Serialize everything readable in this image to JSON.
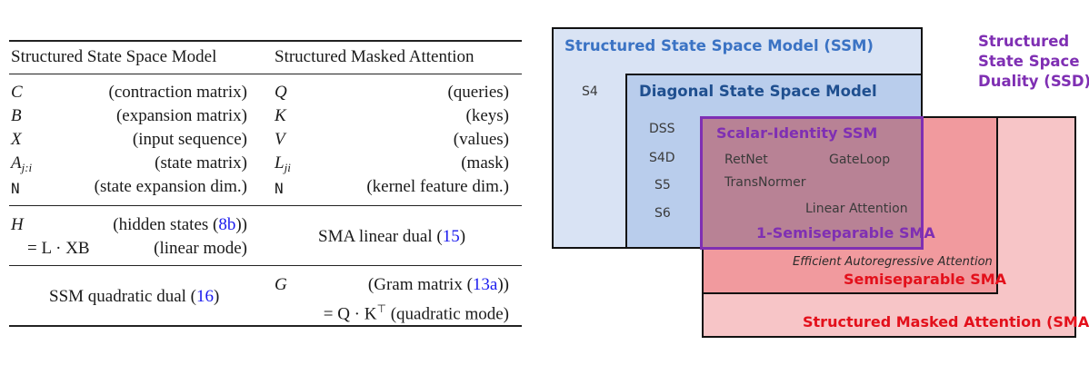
{
  "table": {
    "header_left": "Structured State Space Model",
    "header_right": "Structured Masked Attention",
    "rows": [
      {
        "lsym": "C",
        "ldesc": "(contraction matrix)",
        "rsym": "Q",
        "rdesc": "(queries)"
      },
      {
        "lsym": "B",
        "ldesc": "(expansion matrix)",
        "rsym": "K",
        "rdesc": "(keys)"
      },
      {
        "lsym": "X",
        "ldesc": "(input sequence)",
        "rsym": "V",
        "rdesc": "(values)"
      },
      {
        "lsym": "A",
        "lsub": "j:i",
        "ldesc": "(state matrix)",
        "rsym": "L",
        "rsub": "ji",
        "rdesc": "(mask)"
      },
      {
        "lsym": "N",
        "ldesc": "(state expansion dim.)",
        "rsym": "N",
        "rdesc": "(kernel feature dim.)"
      }
    ],
    "hidden": {
      "sym": "H",
      "desc": "(hidden states (",
      "ref": "8b",
      "close": "))",
      "eq": "= L · XB",
      "mode": "(linear mode)"
    },
    "sma_linear": {
      "text": "SMA linear dual (",
      "ref": "15",
      "close": ")"
    },
    "ssm_quadratic": {
      "text": "SSM quadratic dual (",
      "ref": "16",
      "close": ")"
    },
    "gram": {
      "sym": "G",
      "desc": "(Gram matrix (",
      "ref": "13a",
      "close": "))",
      "eq": "= Q · K",
      "sup": "⊤",
      "mode": "(quadratic mode)"
    }
  },
  "diagram": {
    "ssm_title": "Structured State Space Model (SSM)",
    "s4": "S4",
    "diag_title": "Diagonal State Space Model",
    "diag_items": [
      "DSS",
      "S4D",
      "S5",
      "S6"
    ],
    "scalar_title": "Scalar-Identity SSM",
    "scalar_items": {
      "retnet": "RetNet",
      "gateloop": "GateLoop",
      "transnormer": "TransNormer",
      "linear_attention": "Linear Attention"
    },
    "semisep1": "1-Semiseparable SMA",
    "eff": "Efficient Autoregressive Attention",
    "semisep": "Semiseparable SMA",
    "sma": "Structured Masked Attention (SMA)",
    "ssd": [
      "Structured",
      "State Space",
      "Duality (SSD)"
    ],
    "colors": {
      "ssm_fill": "#d9e3f4",
      "diag_fill": "#b9cdec",
      "pink_fill": "#f7c5c7",
      "semi_fill": "#f19a9e",
      "overlap_fill": "#b88295",
      "purple": "#7f2fb3",
      "red": "#e3101b"
    }
  }
}
